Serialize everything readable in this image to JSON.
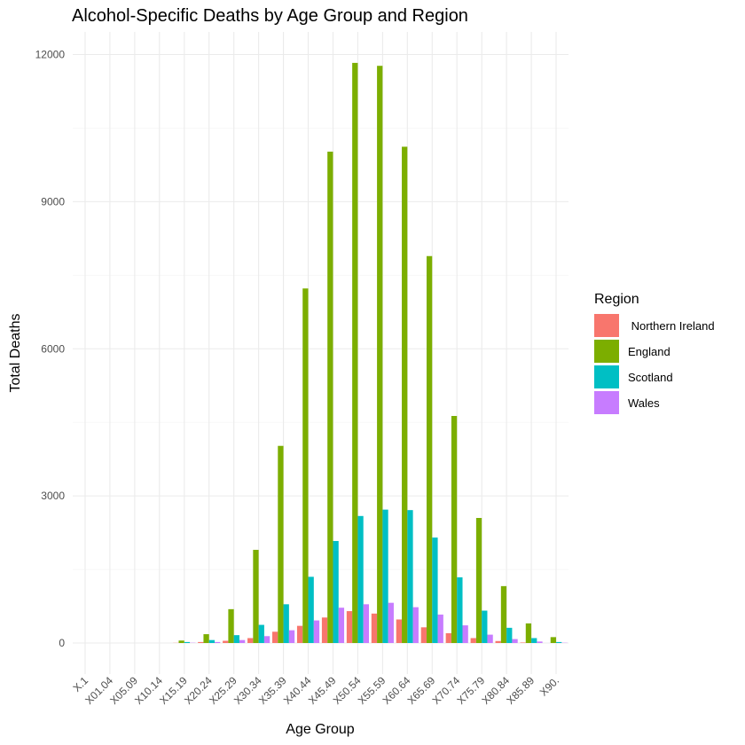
{
  "chart_data": {
    "type": "bar",
    "title": "Alcohol-Specific Deaths by Age Group and Region",
    "xlabel": "Age Group",
    "ylabel": "Total Deaths",
    "ylim": [
      -1300,
      12400
    ],
    "yticks": [
      0,
      3000,
      6000,
      9000,
      12000
    ],
    "grid": true,
    "legend_position": "right",
    "legend_title": "Region",
    "categories": [
      "X.1",
      "X01.04",
      "X05.09",
      "X10.14",
      "X15.19",
      "X20.24",
      "X25.29",
      "X30.34",
      "X35.39",
      "X40.44",
      "X45.49",
      "X50.54",
      "X55.59",
      "X60.64",
      "X65.69",
      "X70.74",
      "X75.79",
      "X80.84",
      "X85.89",
      "X90."
    ],
    "series": [
      {
        "name": " Northern Ireland",
        "color": "#F8766D",
        "values": [
          0,
          0,
          0,
          0,
          3,
          20,
          45,
          100,
          230,
          350,
          520,
          650,
          600,
          480,
          320,
          200,
          100,
          40,
          10,
          0
        ]
      },
      {
        "name": "England",
        "color": "#7CAE00",
        "values": [
          0,
          0,
          0,
          0,
          50,
          180,
          690,
          1900,
          4020,
          7230,
          10020,
          11830,
          11770,
          10120,
          7890,
          4630,
          2550,
          1160,
          400,
          120
        ]
      },
      {
        "name": "Scotland",
        "color": "#00BFC4",
        "values": [
          0,
          0,
          0,
          0,
          20,
          60,
          160,
          370,
          790,
          1350,
          2080,
          2590,
          2720,
          2710,
          2150,
          1340,
          660,
          310,
          100,
          20
        ]
      },
      {
        "name": "Wales",
        "color": "#C77CFF",
        "values": [
          0,
          0,
          0,
          0,
          5,
          20,
          60,
          140,
          260,
          460,
          720,
          790,
          820,
          730,
          580,
          360,
          170,
          80,
          30,
          5
        ]
      }
    ]
  }
}
